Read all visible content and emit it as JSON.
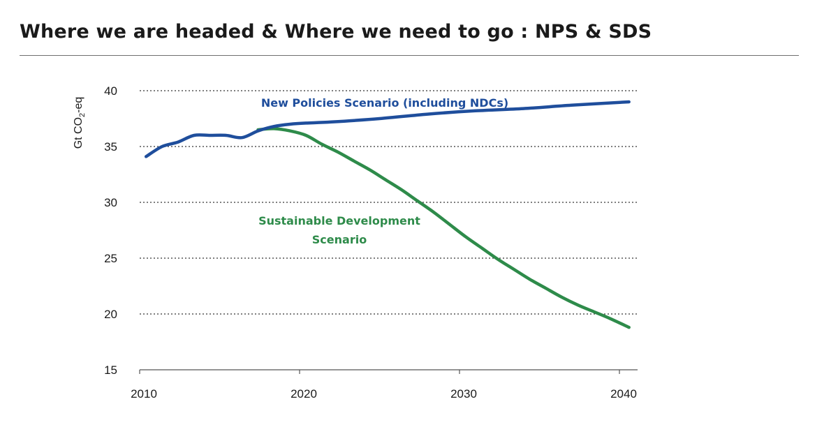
{
  "slide": {
    "title": "Where we are headed & Where we need to go : NPS & SDS"
  },
  "chart_data": {
    "type": "line",
    "title": "",
    "xlabel": "",
    "ylabel": "Gt CO2-eq",
    "ylabel_parts": {
      "prefix": "Gt CO",
      "subscript": "2",
      "suffix": "-eq"
    },
    "xlim": [
      2010,
      2040
    ],
    "ylim": [
      15,
      40
    ],
    "x_ticks": [
      2010,
      2020,
      2030,
      2040
    ],
    "y_ticks": [
      15,
      20,
      25,
      30,
      35,
      40
    ],
    "grid": "horizontal dotted",
    "legend": "inline labels",
    "series": [
      {
        "name": "New Policies Scenario (including NDCs)",
        "label_lines": [
          "New Policies Scenario (including NDCs)"
        ],
        "color": "#1f4e9c",
        "points": [
          [
            2010.4,
            34.1
          ],
          [
            2011.4,
            35.0
          ],
          [
            2012.4,
            35.4
          ],
          [
            2013.4,
            36.0
          ],
          [
            2014.4,
            36.0
          ],
          [
            2015.4,
            36.0
          ],
          [
            2016.4,
            35.8
          ],
          [
            2017.4,
            36.4
          ],
          [
            2018.4,
            36.8
          ],
          [
            2019.4,
            37.0
          ],
          [
            2020.4,
            37.1
          ],
          [
            2022,
            37.2
          ],
          [
            2025,
            37.5
          ],
          [
            2028,
            37.9
          ],
          [
            2031,
            38.2
          ],
          [
            2034,
            38.4
          ],
          [
            2037,
            38.7
          ],
          [
            2040.6,
            39.0
          ]
        ]
      },
      {
        "name": "Sustainable Development Scenario",
        "label_lines": [
          "Sustainable Development",
          "Scenario"
        ],
        "color": "#2e8b4a",
        "points": [
          [
            2017.4,
            36.5
          ],
          [
            2018.4,
            36.6
          ],
          [
            2019.4,
            36.4
          ],
          [
            2020.4,
            36.0
          ],
          [
            2021.4,
            35.2
          ],
          [
            2022.4,
            34.5
          ],
          [
            2023.4,
            33.7
          ],
          [
            2024.4,
            32.9
          ],
          [
            2025.4,
            32.0
          ],
          [
            2026.4,
            31.1
          ],
          [
            2027.4,
            30.1
          ],
          [
            2028.4,
            29.1
          ],
          [
            2029.4,
            28.0
          ],
          [
            2030.4,
            26.9
          ],
          [
            2031.4,
            25.9
          ],
          [
            2032.4,
            24.9
          ],
          [
            2033.4,
            24.0
          ],
          [
            2034.4,
            23.1
          ],
          [
            2035.4,
            22.3
          ],
          [
            2036.4,
            21.5
          ],
          [
            2037.4,
            20.8
          ],
          [
            2038.4,
            20.2
          ],
          [
            2039.4,
            19.6
          ],
          [
            2040.6,
            18.8
          ]
        ]
      }
    ]
  }
}
